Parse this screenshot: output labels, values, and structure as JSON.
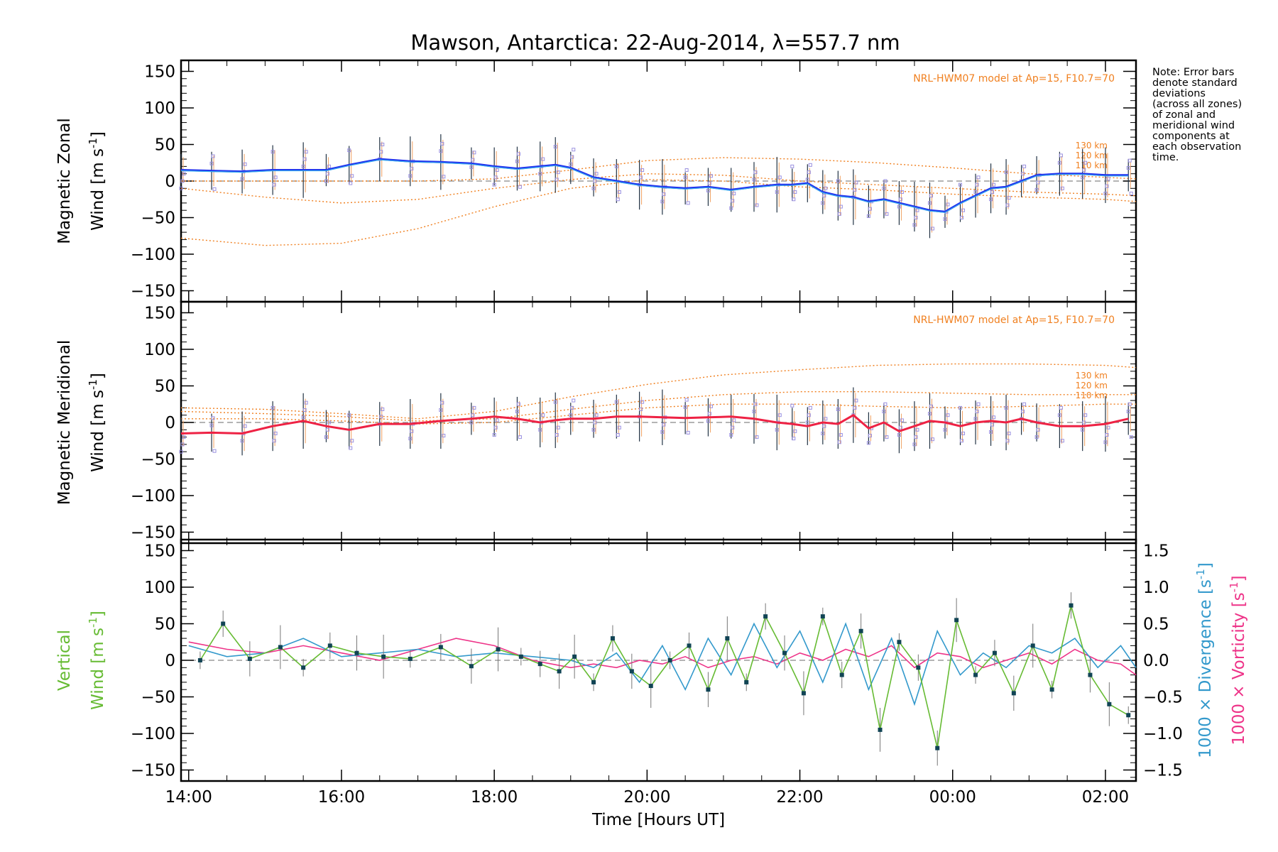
{
  "title": "Mawson, Antarctica: 22-Aug-2014, λ=557.7 nm",
  "note": "Note: Error bars\ndenote standard\ndeviations\n(across all zones)\nof zonal and\nmeridional wind\ncomponents at\neach observation\ntime.",
  "colors": {
    "zonal": "#2233ee",
    "zonal_fine": "#33aaee",
    "meridional": "#ee2244",
    "model": "#f08020",
    "zone_points": "#9a90e0",
    "vertical": "#66bb33",
    "divergence": "#3399cc",
    "vorticity": "#ee3388",
    "zero_line": "#888888"
  },
  "chart_data": [
    {
      "type": "line",
      "panel": "zonal",
      "xlabel": "Time [Hours UT]",
      "ylabel_line1": "Magnetic Zonal",
      "ylabel_line2": "Wind [m s",
      "ylabel_unit_sup": "-1",
      "ylabel_unit_end": "]",
      "ylim": [
        -165,
        165
      ],
      "xlim_hours": [
        13.9,
        26.4
      ],
      "yticks": [
        -150,
        -100,
        -50,
        0,
        50,
        100,
        150
      ],
      "model_label": "NRL-HWM07 model at Ap=15, F10.7=70",
      "model_height_labels": [
        "130 km",
        "120 km",
        "110 km"
      ],
      "series": [
        {
          "x": [
            13.9,
            14.3,
            14.7,
            15.1,
            15.5,
            15.8,
            16.1,
            16.5,
            16.9,
            17.3,
            17.7,
            18.0,
            18.3,
            18.6,
            18.8,
            19.0,
            19.3,
            19.6,
            19.9,
            20.2,
            20.5,
            20.8,
            21.1,
            21.4,
            21.7,
            21.9,
            22.1,
            22.3,
            22.5,
            22.7,
            22.9,
            23.1,
            23.3,
            23.5,
            23.7,
            23.9,
            24.1,
            24.3,
            24.5,
            24.7,
            24.9,
            25.1,
            25.4,
            25.7,
            26.0,
            26.3
          ],
          "values": [
            15,
            14,
            13,
            15,
            15,
            15,
            22,
            30,
            27,
            26,
            24,
            20,
            17,
            20,
            22,
            18,
            5,
            0,
            -5,
            -8,
            -10,
            -8,
            -12,
            -8,
            -5,
            -5,
            -3,
            -15,
            -20,
            -22,
            -28,
            -25,
            -30,
            -35,
            -40,
            -42,
            -30,
            -20,
            -10,
            -8,
            0,
            8,
            10,
            10,
            8,
            8
          ]
        }
      ],
      "model_curves": [
        {
          "label": "130 km",
          "x": [
            13.9,
            15.0,
            16.0,
            17.0,
            18.0,
            19.0,
            20.0,
            21.0,
            22.0,
            23.0,
            24.0,
            25.0,
            26.0,
            26.4
          ],
          "values": [
            0,
            0,
            0,
            0,
            3,
            15,
            28,
            32,
            30,
            25,
            18,
            10,
            5,
            3
          ]
        },
        {
          "label": "120 km",
          "x": [
            13.9,
            15.0,
            16.0,
            17.0,
            18.0,
            19.0,
            20.0,
            21.0,
            22.0,
            23.0,
            24.0,
            25.0,
            26.0,
            26.4
          ],
          "values": [
            -10,
            -22,
            -30,
            -25,
            -10,
            2,
            10,
            8,
            0,
            -5,
            -10,
            -15,
            -18,
            -20
          ]
        },
        {
          "label": "110 km",
          "x": [
            13.9,
            15.0,
            16.0,
            17.0,
            18.0,
            19.0,
            20.0,
            21.0,
            22.0,
            23.0,
            24.0,
            25.0,
            26.0,
            26.4
          ],
          "values": [
            -78,
            -88,
            -85,
            -65,
            -35,
            -10,
            2,
            0,
            -8,
            -12,
            -18,
            -22,
            -25,
            -28
          ]
        }
      ]
    },
    {
      "type": "line",
      "panel": "meridional",
      "ylabel_line1": "Magnetic Meridional",
      "ylabel_line2": "Wind [m s",
      "ylabel_unit_sup": "-1",
      "ylabel_unit_end": "]",
      "ylim": [
        -165,
        165
      ],
      "xlim_hours": [
        13.9,
        26.4
      ],
      "yticks": [
        -150,
        -100,
        -50,
        0,
        50,
        100,
        150
      ],
      "model_label": "NRL-HWM07 model at Ap=15, F10.7=70",
      "model_height_labels": [
        "130 km",
        "120 km",
        "110 km"
      ],
      "series": [
        {
          "x": [
            13.9,
            14.3,
            14.7,
            15.1,
            15.5,
            15.8,
            16.1,
            16.5,
            16.9,
            17.3,
            17.7,
            18.0,
            18.3,
            18.6,
            18.8,
            19.0,
            19.3,
            19.6,
            19.9,
            20.2,
            20.5,
            20.8,
            21.1,
            21.4,
            21.7,
            21.9,
            22.1,
            22.3,
            22.5,
            22.7,
            22.9,
            23.1,
            23.3,
            23.5,
            23.7,
            23.9,
            24.1,
            24.3,
            24.5,
            24.7,
            24.9,
            25.1,
            25.4,
            25.7,
            26.0,
            26.3
          ],
          "values": [
            -15,
            -14,
            -15,
            -5,
            2,
            -5,
            -10,
            -2,
            -2,
            2,
            5,
            8,
            5,
            0,
            3,
            5,
            5,
            8,
            8,
            7,
            6,
            7,
            8,
            5,
            0,
            -2,
            -5,
            0,
            -2,
            10,
            -8,
            0,
            -12,
            -5,
            2,
            0,
            -5,
            0,
            2,
            0,
            5,
            0,
            -5,
            -5,
            -2,
            5
          ]
        }
      ],
      "model_curves": [
        {
          "label": "130 km",
          "x": [
            13.9,
            15.0,
            16.0,
            17.0,
            18.0,
            19.0,
            20.0,
            21.0,
            22.0,
            23.0,
            24.0,
            25.0,
            26.0,
            26.4
          ],
          "values": [
            20,
            18,
            12,
            5,
            15,
            35,
            52,
            65,
            72,
            78,
            80,
            80,
            78,
            75
          ]
        },
        {
          "label": "120 km",
          "x": [
            13.9,
            15.0,
            16.0,
            17.0,
            18.0,
            19.0,
            20.0,
            21.0,
            22.0,
            23.0,
            24.0,
            25.0,
            26.0,
            26.4
          ],
          "values": [
            15,
            12,
            8,
            2,
            5,
            18,
            30,
            38,
            42,
            42,
            40,
            38,
            38,
            38
          ]
        },
        {
          "label": "110 km",
          "x": [
            13.9,
            15.0,
            16.0,
            17.0,
            18.0,
            19.0,
            20.0,
            21.0,
            22.0,
            23.0,
            24.0,
            25.0,
            26.0,
            26.4
          ],
          "values": [
            5,
            5,
            2,
            -2,
            0,
            10,
            20,
            25,
            25,
            22,
            20,
            22,
            25,
            25
          ]
        }
      ]
    },
    {
      "type": "line",
      "panel": "vertical",
      "ylabel_left_line1": "Vertical",
      "ylabel_left_line2": "Wind",
      "ylabel_left_unit": "[m s",
      "ylabel_left_sup": "-1",
      "ylabel_left_end": "]",
      "ylabel_right1": "1000 × Divergence",
      "ylabel_right2": "1000 × Vorticity",
      "ylabel_right_unit": "[s",
      "ylabel_right_sup": "-1",
      "ylabel_right_end": "]",
      "ylim": [
        -165,
        165
      ],
      "ylim_right": [
        -1.65,
        1.65
      ],
      "xlim_hours": [
        13.9,
        26.4
      ],
      "yticks": [
        -150,
        -100,
        -50,
        0,
        50,
        100,
        150
      ],
      "yticks_right": [
        -1.5,
        -1.0,
        -0.5,
        0.0,
        0.5,
        1.0,
        1.5
      ],
      "yticks_right_labels": [
        "−1.5",
        "−1.0",
        "−0.5",
        "0.0",
        "0.5",
        "1.0",
        "1.5"
      ],
      "xticks_hours": [
        14,
        16,
        18,
        20,
        22,
        24,
        26
      ],
      "xtick_labels": [
        "14:00",
        "16:00",
        "18:00",
        "20:00",
        "22:00",
        "00:00",
        "02:00"
      ],
      "series": [
        {
          "name": "Vertical Wind",
          "x": [
            14.15,
            14.45,
            14.8,
            15.2,
            15.5,
            15.85,
            16.2,
            16.55,
            16.9,
            17.3,
            17.7,
            18.05,
            18.35,
            18.6,
            18.85,
            19.05,
            19.3,
            19.55,
            19.8,
            20.05,
            20.3,
            20.55,
            20.8,
            21.05,
            21.3,
            21.55,
            21.8,
            22.05,
            22.3,
            22.55,
            22.8,
            23.05,
            23.3,
            23.55,
            23.8,
            24.05,
            24.3,
            24.55,
            24.8,
            25.05,
            25.3,
            25.55,
            25.8,
            26.05,
            26.3
          ],
          "values": [
            0,
            50,
            2,
            18,
            -10,
            20,
            10,
            5,
            2,
            18,
            -8,
            15,
            5,
            -5,
            -15,
            5,
            -30,
            30,
            -15,
            -35,
            0,
            20,
            -40,
            30,
            -30,
            60,
            10,
            -45,
            60,
            -20,
            40,
            -95,
            25,
            -10,
            -120,
            55,
            -20,
            10,
            -45,
            20,
            -40,
            75,
            -20,
            -60,
            -75
          ]
        },
        {
          "name": "1000 × Divergence",
          "x": [
            14.0,
            14.5,
            15.0,
            15.5,
            16.0,
            16.5,
            17.0,
            17.5,
            18.0,
            18.5,
            19.0,
            19.3,
            19.6,
            19.9,
            20.2,
            20.5,
            20.8,
            21.1,
            21.4,
            21.7,
            22.0,
            22.3,
            22.6,
            22.9,
            23.2,
            23.5,
            23.8,
            24.1,
            24.4,
            24.7,
            25.0,
            25.3,
            25.6,
            25.9,
            26.2,
            26.4
          ],
          "values": [
            0.2,
            0.05,
            0.1,
            0.3,
            0.05,
            0.1,
            0.15,
            0.05,
            0.1,
            0.05,
            0.0,
            -0.1,
            0.1,
            -0.3,
            0.2,
            -0.4,
            0.3,
            -0.2,
            0.5,
            -0.1,
            0.4,
            -0.3,
            0.5,
            -0.4,
            0.3,
            -0.6,
            0.4,
            -0.2,
            0.1,
            -0.1,
            0.2,
            0.1,
            0.3,
            -0.1,
            0.2,
            -0.1
          ]
        },
        {
          "name": "1000 × Vorticity",
          "x": [
            14.0,
            14.5,
            15.0,
            15.5,
            16.0,
            16.5,
            17.0,
            17.5,
            18.0,
            18.5,
            19.0,
            19.3,
            19.6,
            19.9,
            20.2,
            20.5,
            20.8,
            21.1,
            21.4,
            21.7,
            22.0,
            22.3,
            22.6,
            22.9,
            23.2,
            23.5,
            23.8,
            24.1,
            24.4,
            24.7,
            25.0,
            25.3,
            25.6,
            25.9,
            26.2,
            26.4
          ],
          "values": [
            0.25,
            0.15,
            0.1,
            0.2,
            0.1,
            0.0,
            0.15,
            0.3,
            0.2,
            0.0,
            -0.1,
            -0.05,
            -0.1,
            0.0,
            -0.05,
            0.05,
            -0.1,
            0.0,
            0.05,
            -0.05,
            0.1,
            0.0,
            0.15,
            0.05,
            0.2,
            -0.1,
            0.1,
            0.05,
            -0.1,
            0.0,
            0.1,
            -0.05,
            0.15,
            0.0,
            -0.05,
            -0.2
          ]
        }
      ]
    }
  ]
}
